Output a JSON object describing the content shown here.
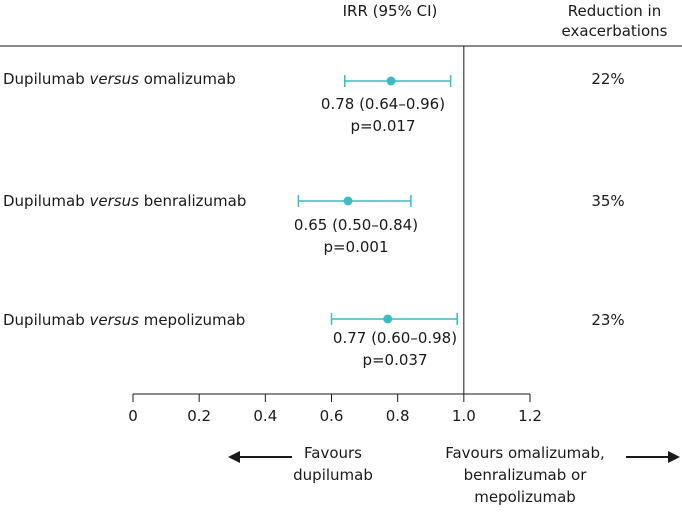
{
  "header": {
    "irr_label": "IRR (95% CI)",
    "reduction_line1": "Reduction in",
    "reduction_line2": "exacerbations"
  },
  "rows": [
    {
      "prefix": "Dupilumab ",
      "italic": "versus",
      "suffix": " omalizumab",
      "estimate_text": "0.78 (0.64–0.96)",
      "p_text": "p=0.017",
      "reduction": "22%"
    },
    {
      "prefix": "Dupilumab ",
      "italic": "versus",
      "suffix": " benralizumab",
      "estimate_text": "0.65 (0.50–0.84)",
      "p_text": "p=0.001",
      "reduction": "35%"
    },
    {
      "prefix": "Dupilumab ",
      "italic": "versus",
      "suffix": " mepolizumab",
      "estimate_text": "0.77 (0.60–0.98)",
      "p_text": "p=0.037",
      "reduction": "23%"
    }
  ],
  "favours": {
    "left_line1": "Favours",
    "left_line2": "dupilumab",
    "right_line1": "Favours omalizumab,",
    "right_line2": "benralizumab or",
    "right_line3": "mepolizumab"
  },
  "colors": {
    "marker": "#3bbcc0",
    "axis": "#1a1a1a"
  },
  "chart_data": {
    "type": "scatter",
    "categories": [
      "Dupilumab versus omalizumab",
      "Dupilumab versus benralizumab",
      "Dupilumab versus mepolizumab"
    ],
    "series": [
      {
        "values": [
          0.78,
          0.65,
          0.77
        ],
        "ci_low": [
          0.64,
          0.5,
          0.6
        ],
        "ci_high": [
          0.96,
          0.84,
          0.98
        ]
      }
    ],
    "xlim": [
      0,
      1.2
    ],
    "xticks": [
      0,
      0.2,
      0.4,
      0.6,
      0.8,
      1.0,
      1.2
    ],
    "xtick_labels": [
      "0",
      "0.2",
      "0.4",
      "0.6",
      "0.8",
      "1.0",
      "1.2"
    ],
    "reference_line": 1.0
  }
}
